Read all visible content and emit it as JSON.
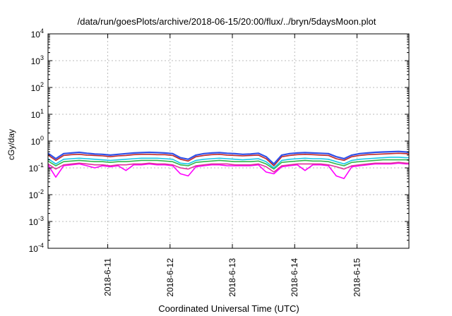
{
  "chart_data": {
    "type": "line",
    "title": "/data/run/goesPlots/archive/2018-06-15/20:00/flux/../bryn/5daysMoon.plot",
    "xlabel": "Coordinated Universal Time (UTC)",
    "ylabel": "cGy/day",
    "yscale": "log",
    "ylim": [
      0.0001,
      10000
    ],
    "y_ticks": [
      {
        "value": 0.0001,
        "base": "10",
        "exp": "-4"
      },
      {
        "value": 0.001,
        "base": "10",
        "exp": "-3"
      },
      {
        "value": 0.01,
        "base": "10",
        "exp": "-2"
      },
      {
        "value": 0.1,
        "base": "10",
        "exp": "-1"
      },
      {
        "value": 1,
        "base": "10",
        "exp": "0"
      },
      {
        "value": 10,
        "base": "10",
        "exp": "1"
      },
      {
        "value": 100,
        "base": "10",
        "exp": "2"
      },
      {
        "value": 1000,
        "base": "10",
        "exp": "3"
      },
      {
        "value": 10000,
        "base": "10",
        "exp": "4"
      }
    ],
    "xlim": [
      "2018-06-10T01:00",
      "2018-06-15T20:00"
    ],
    "x_ticks": [
      "2018-6-11",
      "2018-6-12",
      "2018-6-13",
      "2018-6-14",
      "2018-6-15"
    ],
    "grid": true,
    "legend": "none",
    "x": [
      "2018-06-10T01:00",
      "2018-06-10T04:00",
      "2018-06-10T07:00",
      "2018-06-10T10:00",
      "2018-06-10T13:00",
      "2018-06-10T16:00",
      "2018-06-10T19:00",
      "2018-06-10T22:00",
      "2018-06-11T01:00",
      "2018-06-11T04:00",
      "2018-06-11T07:00",
      "2018-06-11T10:00",
      "2018-06-11T13:00",
      "2018-06-11T16:00",
      "2018-06-11T19:00",
      "2018-06-11T22:00",
      "2018-06-12T01:00",
      "2018-06-12T04:00",
      "2018-06-12T07:00",
      "2018-06-12T10:00",
      "2018-06-12T13:00",
      "2018-06-12T16:00",
      "2018-06-12T19:00",
      "2018-06-12T22:00",
      "2018-06-13T01:00",
      "2018-06-13T04:00",
      "2018-06-13T07:00",
      "2018-06-13T10:00",
      "2018-06-13T13:00",
      "2018-06-13T16:00",
      "2018-06-13T19:00",
      "2018-06-13T22:00",
      "2018-06-14T01:00",
      "2018-06-14T04:00",
      "2018-06-14T07:00",
      "2018-06-14T10:00",
      "2018-06-14T13:00",
      "2018-06-14T16:00",
      "2018-06-14T19:00",
      "2018-06-14T22:00",
      "2018-06-15T01:00",
      "2018-06-15T04:00",
      "2018-06-15T07:00",
      "2018-06-15T10:00",
      "2018-06-15T13:00",
      "2018-06-15T16:00",
      "2018-06-15T19:00",
      "2018-06-15T20:00"
    ],
    "series": [
      {
        "color": "#3050e8",
        "values": [
          0.35,
          0.22,
          0.34,
          0.36,
          0.38,
          0.35,
          0.33,
          0.32,
          0.3,
          0.32,
          0.34,
          0.36,
          0.37,
          0.38,
          0.37,
          0.36,
          0.34,
          0.24,
          0.21,
          0.3,
          0.34,
          0.36,
          0.37,
          0.35,
          0.34,
          0.32,
          0.33,
          0.35,
          0.26,
          0.14,
          0.3,
          0.34,
          0.36,
          0.37,
          0.36,
          0.35,
          0.34,
          0.26,
          0.22,
          0.3,
          0.34,
          0.36,
          0.38,
          0.39,
          0.4,
          0.41,
          0.39,
          0.38
        ]
      },
      {
        "color": "#c02828",
        "values": [
          0.3,
          0.19,
          0.29,
          0.31,
          0.32,
          0.3,
          0.29,
          0.28,
          0.26,
          0.28,
          0.29,
          0.31,
          0.32,
          0.32,
          0.31,
          0.31,
          0.29,
          0.21,
          0.18,
          0.26,
          0.29,
          0.31,
          0.32,
          0.3,
          0.29,
          0.28,
          0.29,
          0.3,
          0.22,
          0.12,
          0.26,
          0.29,
          0.31,
          0.32,
          0.31,
          0.3,
          0.29,
          0.22,
          0.19,
          0.26,
          0.29,
          0.31,
          0.32,
          0.33,
          0.34,
          0.35,
          0.34,
          0.33
        ]
      },
      {
        "color": "#18c8e8",
        "values": [
          0.22,
          0.14,
          0.21,
          0.22,
          0.23,
          0.22,
          0.21,
          0.2,
          0.19,
          0.2,
          0.21,
          0.22,
          0.23,
          0.23,
          0.23,
          0.22,
          0.21,
          0.15,
          0.14,
          0.19,
          0.21,
          0.22,
          0.23,
          0.22,
          0.21,
          0.2,
          0.21,
          0.22,
          0.17,
          0.1,
          0.19,
          0.21,
          0.22,
          0.23,
          0.22,
          0.22,
          0.21,
          0.17,
          0.14,
          0.19,
          0.21,
          0.22,
          0.23,
          0.24,
          0.25,
          0.25,
          0.24,
          0.24
        ]
      },
      {
        "color": "#30b848",
        "values": [
          0.18,
          0.12,
          0.17,
          0.18,
          0.19,
          0.18,
          0.17,
          0.17,
          0.16,
          0.17,
          0.17,
          0.18,
          0.19,
          0.19,
          0.19,
          0.18,
          0.17,
          0.13,
          0.12,
          0.16,
          0.17,
          0.18,
          0.19,
          0.18,
          0.17,
          0.17,
          0.17,
          0.18,
          0.14,
          0.09,
          0.16,
          0.17,
          0.18,
          0.19,
          0.18,
          0.18,
          0.17,
          0.14,
          0.12,
          0.16,
          0.17,
          0.18,
          0.19,
          0.2,
          0.2,
          0.2,
          0.2,
          0.19
        ]
      },
      {
        "color": "#e0309a",
        "values": [
          0.14,
          0.09,
          0.13,
          0.14,
          0.15,
          0.14,
          0.13,
          0.13,
          0.12,
          0.13,
          0.13,
          0.14,
          0.14,
          0.15,
          0.14,
          0.14,
          0.13,
          0.1,
          0.09,
          0.12,
          0.13,
          0.14,
          0.14,
          0.14,
          0.13,
          0.13,
          0.13,
          0.14,
          0.11,
          0.07,
          0.12,
          0.13,
          0.14,
          0.14,
          0.14,
          0.14,
          0.13,
          0.11,
          0.09,
          0.12,
          0.13,
          0.14,
          0.15,
          0.15,
          0.15,
          0.16,
          0.15,
          0.15
        ]
      },
      {
        "color": "#ff00ff",
        "values": [
          0.13,
          0.045,
          0.12,
          0.13,
          0.14,
          0.12,
          0.1,
          0.12,
          0.11,
          0.12,
          0.08,
          0.13,
          0.13,
          0.14,
          0.13,
          0.13,
          0.12,
          0.06,
          0.05,
          0.11,
          0.12,
          0.13,
          0.13,
          0.12,
          0.12,
          0.12,
          0.12,
          0.13,
          0.07,
          0.06,
          0.11,
          0.12,
          0.13,
          0.08,
          0.13,
          0.13,
          0.12,
          0.05,
          0.04,
          0.11,
          0.12,
          0.13,
          0.14,
          0.14,
          0.14,
          0.15,
          0.14,
          0.14
        ]
      }
    ]
  }
}
